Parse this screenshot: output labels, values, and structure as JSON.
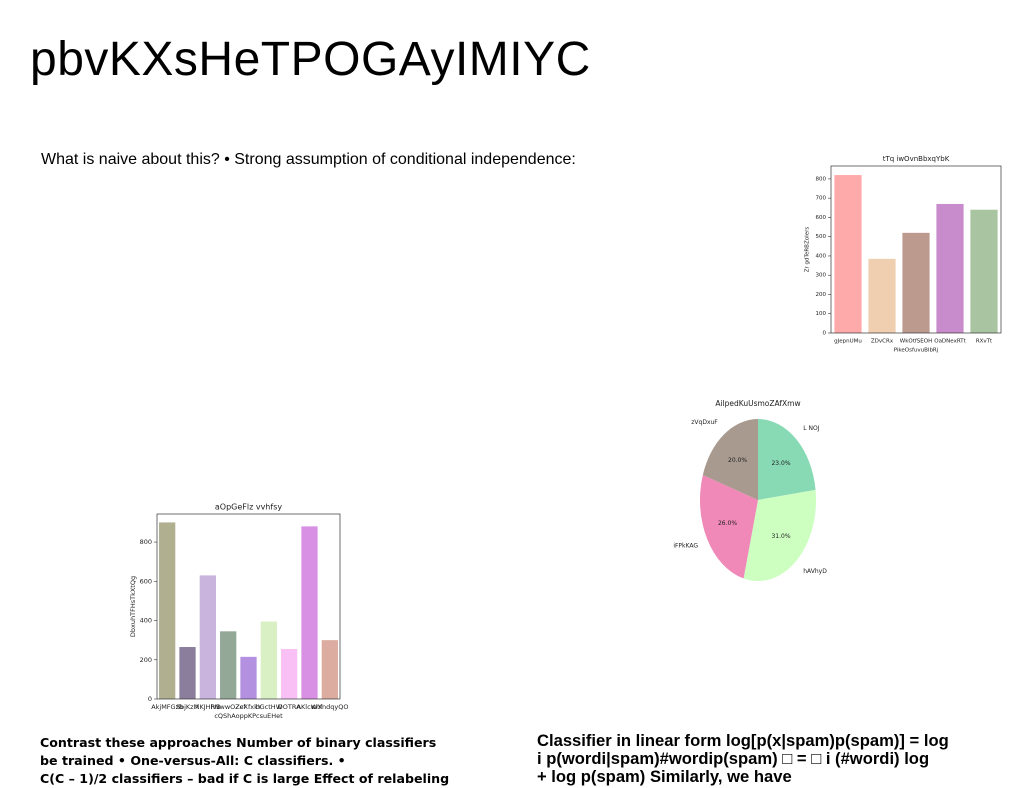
{
  "title": "pbvKXsHeTPOGAyIMIYC",
  "intro": "What is naive about this? • Strong assumption of conditional independence:",
  "left_text": [
    "Contrast these approaches Number of binary classifiers",
    "be trained • One-versus-All: C classifiers. •",
    "C(C – 1)/2 classifiers – bad if C is large Effect of relabeling"
  ],
  "right_text": [
    "Classifier in linear form log[p(x|spam)p(spam)] = log",
    "i p(wordi|spam)#wordip(spam) □ = □ i (#wordi) log",
    "+ log p(spam) Similarly, we have"
  ],
  "chart_data": [
    {
      "type": "bar",
      "title": "tTq iwOvnBbxqYbK",
      "x_label": "PikeOsfuvuBlbRj",
      "y_label": "Zr gdTeRBZoIers",
      "categories": [
        "gJepnUMu",
        "ZDvCRx",
        "WkOtfSEOH",
        "OaDNexRTt",
        "RXvTt"
      ],
      "values": [
        820,
        385,
        520,
        670,
        640
      ],
      "colors": [
        "#ffaaaa",
        "#f0cfb0",
        "#bc9a8e",
        "#c88ccc",
        "#a8c4a0"
      ],
      "ylim": [
        0,
        867
      ],
      "yticks": [
        0,
        100,
        200,
        300,
        400,
        500,
        600,
        700,
        800
      ]
    },
    {
      "type": "pie",
      "title": "AilpedKuUsmoZAfXmw",
      "categories": [
        "L NOJ",
        "hAVhyD",
        "iFPkKAG",
        "zVqDxuF"
      ],
      "values": [
        23,
        31,
        26,
        20
      ],
      "value_labels": [
        "23.0%",
        "31.0%",
        "26.0%",
        "20.0%"
      ],
      "colors": [
        "#88dab5",
        "#ccffc0",
        "#f088b8",
        "#a89a8e"
      ]
    },
    {
      "type": "bar",
      "title": "aOpGeFlz vvhfsy",
      "x_label": "cQShAoppKPcsuEHet",
      "y_label": "DbxuhTFHsTkXtQg",
      "categories": [
        "AkjMFGzb",
        "SbjKzM",
        "XKJHlvB",
        "PNwwOZcf",
        "ZeXfxkY",
        "bGctHW",
        "DOTRA",
        "AKlcwhf",
        "WXndqyQO"
      ],
      "values": [
        900,
        265,
        630,
        345,
        215,
        395,
        255,
        880,
        300
      ],
      "colors": [
        "#b0b090",
        "#8a7e9c",
        "#c8b4dc",
        "#94a898",
        "#b490e0",
        "#d8f0c4",
        "#f8c0f4",
        "#d890e4",
        "#dcaca0"
      ],
      "ylim": [
        0,
        943
      ],
      "yticks": [
        0,
        200,
        400,
        600,
        800
      ]
    }
  ]
}
